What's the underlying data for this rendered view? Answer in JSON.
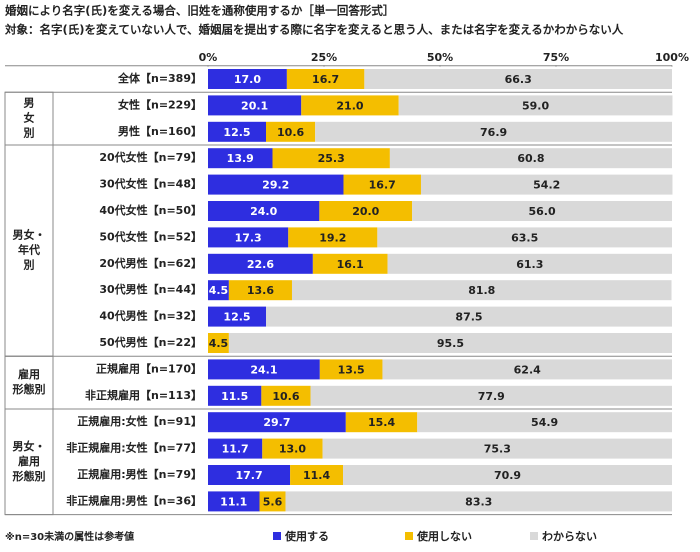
{
  "chart_data": {
    "type": "stacked-bar-horizontal",
    "title": "婚姻により名字(氏)を変える場合、旧姓を通称使用するか［単一回答形式］",
    "subtitle": "対象：名字(氏)を変えていない人で、婚姻届を提出する際に名字を変えると思う人、または名字を変えるかわからない人",
    "categories": [
      "全体【n=389】",
      "女性【n=229】",
      "男性【n=160】",
      "20代女性【n=79】",
      "30代女性【n=48】",
      "40代女性【n=50】",
      "50代女性【n=52】",
      "20代男性【n=62】",
      "30代男性【n=44】",
      "40代男性【n=32】",
      "50代男性【n=22】",
      "正規雇用【n=170】",
      "非正規雇用【n=113】",
      "正規雇用:女性【n=91】",
      "非正規雇用:女性【n=77】",
      "正規雇用:男性【n=79】",
      "非正規雇用:男性【n=36】"
    ],
    "groups": [
      {
        "lines": [],
        "size": 1
      },
      {
        "lines": [
          "男",
          "女",
          "別"
        ],
        "size": 2
      },
      {
        "lines": [
          "男女・",
          "年代",
          "別"
        ],
        "size": 8
      },
      {
        "lines": [
          "雇用",
          "形態別"
        ],
        "size": 2
      },
      {
        "lines": [
          "男女・",
          "雇用",
          "形態別"
        ],
        "size": 4
      }
    ],
    "series": [
      {
        "name": "使用する",
        "color": "#2e2ee0",
        "label_color": "#ffffff",
        "values": [
          17.0,
          20.1,
          12.5,
          13.9,
          29.2,
          24.0,
          17.3,
          22.6,
          4.5,
          12.5,
          0,
          24.1,
          11.5,
          29.7,
          11.7,
          17.7,
          11.1
        ],
        "value_labels": [
          "17.0",
          "20.1",
          "12.5",
          "13.9",
          "29.2",
          "24.0",
          "17.3",
          "22.6",
          "4.5",
          "12.5",
          null,
          "24.1",
          "11.5",
          "29.7",
          "11.7",
          "17.7",
          "11.1"
        ]
      },
      {
        "name": "使用しない",
        "color": "#f4be00",
        "label_color": "#222222",
        "values": [
          16.7,
          21.0,
          10.6,
          25.3,
          16.7,
          20.0,
          19.2,
          16.1,
          13.6,
          0,
          4.5,
          13.5,
          10.6,
          15.4,
          13.0,
          11.4,
          5.6
        ],
        "value_labels": [
          "16.7",
          "21.0",
          "10.6",
          "25.3",
          "16.7",
          "20.0",
          "19.2",
          "16.1",
          "13.6",
          null,
          "4.5",
          "13.5",
          "10.6",
          "15.4",
          "13.0",
          "11.4",
          "5.6"
        ]
      },
      {
        "name": "わからない",
        "color": "#d9d9d9",
        "label_color": "#222222",
        "values": [
          66.3,
          59.0,
          76.9,
          60.8,
          54.2,
          56.0,
          63.5,
          61.3,
          81.8,
          87.5,
          95.5,
          62.4,
          77.9,
          54.9,
          75.3,
          70.9,
          83.3
        ],
        "value_labels": [
          "66.3",
          "59.0",
          "76.9",
          "60.8",
          "54.2",
          "56.0",
          "63.5",
          "61.3",
          "81.8",
          "87.5",
          "95.5",
          "62.4",
          "77.9",
          "54.9",
          "75.3",
          "70.9",
          "83.3"
        ]
      }
    ],
    "xlim": [
      0,
      100
    ],
    "xticks": [
      {
        "value": 0,
        "label": "0%"
      },
      {
        "value": 25,
        "label": "25%"
      },
      {
        "value": 50,
        "label": "50%"
      },
      {
        "value": 75,
        "label": "75%"
      },
      {
        "value": 100,
        "label": "100%"
      }
    ],
    "grid": false,
    "legend": "bottom",
    "footnote": "※n=30未満の属性は参考値"
  }
}
